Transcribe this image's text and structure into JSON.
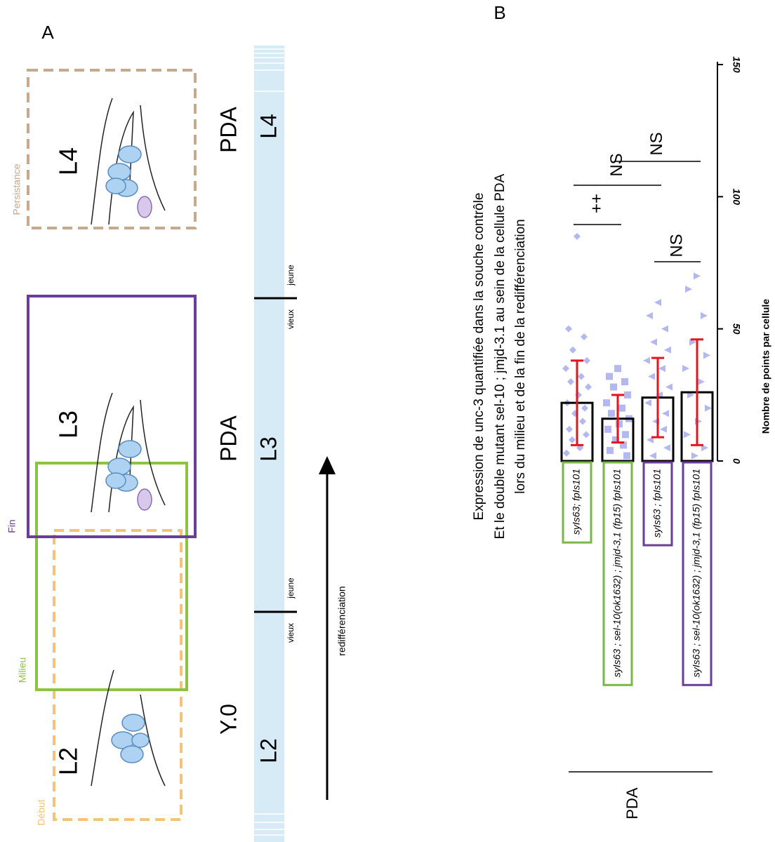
{
  "panel_a": {
    "label": "A",
    "windows": [
      "Persistance",
      "Fin",
      "Milieu",
      "Début"
    ],
    "stages": [
      "L4",
      "L3",
      "L2"
    ],
    "cells": [
      "PDA",
      "PDA",
      "Y.0"
    ],
    "timeline": [
      "L4",
      "L3",
      "L2"
    ],
    "boundaries": [
      {
        "old": "vieux",
        "young": "jeune"
      },
      {
        "old": "vieux",
        "young": "jeune"
      }
    ],
    "arrow_label": "redifférenciation"
  },
  "chart_data": {
    "type": "bar",
    "panel_label": "B",
    "title": [
      "Expression de unc-3 quantifiée dans la souche contrôle",
      "Et le double mutant sel-10 ; jmjd-3.1 au sein de la cellule PDA",
      "lors du milieu et de la fin de la redifférenciation"
    ],
    "y_label": "Nombre de points par cellule",
    "categories": [
      "syIs63; fpIs101",
      "syIs63 ; sel-10(ok1632) ; jmjd-3,1 (fp15) fpIs101",
      "syIs63 ; fpIs101",
      "syIs63 ; sel-10(ok1632) ; jmjd-3,1 (fp15) fpIs101"
    ],
    "category_colors": [
      "#7ab648",
      "#7ab648",
      "#6a3d9a",
      "#6a3d9a"
    ],
    "values": [
      22,
      16,
      24,
      26
    ],
    "errors": [
      16,
      9,
      15,
      20
    ],
    "error_color": "#e8141c",
    "points": [
      [
        85,
        50,
        47,
        42,
        38,
        35,
        32,
        30,
        28,
        25,
        22,
        20,
        18,
        15,
        12,
        10,
        8,
        5,
        3
      ],
      [
        35,
        32,
        30,
        28,
        25,
        22,
        20,
        18,
        16,
        14,
        12,
        10,
        8,
        6,
        4,
        2
      ],
      [
        60,
        55,
        50,
        45,
        42,
        38,
        35,
        32,
        28,
        25,
        22,
        18,
        15,
        12,
        8,
        5,
        2
      ],
      [
        70,
        65,
        55,
        45,
        40,
        35,
        30,
        25,
        20,
        15,
        10,
        5,
        2
      ]
    ],
    "point_color": "#b4b8f0",
    "markers": [
      "diamond",
      "square",
      "triangle-up",
      "triangle-down"
    ],
    "comparisons": [
      {
        "label": "++",
        "groups": [
          0,
          1
        ]
      },
      {
        "label": "NS",
        "groups": [
          0,
          2
        ]
      },
      {
        "label": "NS",
        "groups": [
          1,
          3
        ]
      },
      {
        "label": "NS",
        "groups": [
          2,
          3
        ]
      }
    ],
    "group_label": "PDA",
    "ylim": [
      0,
      150
    ],
    "yticks": [
      0,
      50,
      100,
      150
    ]
  }
}
